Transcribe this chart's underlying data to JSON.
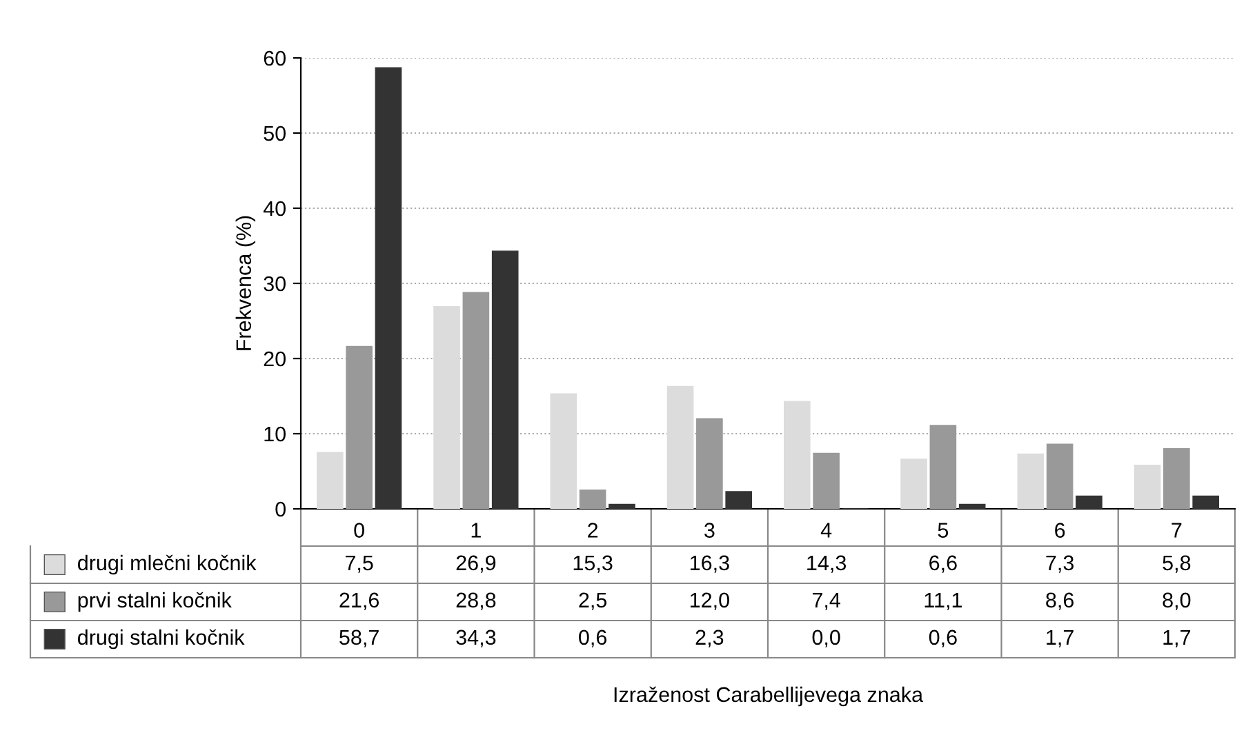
{
  "chart_data": {
    "type": "bar",
    "ylabel": "Frekvenca (%)",
    "annotations": [
      "Izraženost Carabellijevega znaka"
    ],
    "legend": "bottom left",
    "categories": [
      "0",
      "1",
      "2",
      "3",
      "4",
      "5",
      "6",
      "7"
    ],
    "series": [
      {
        "name": "drugi mlečni kočnik",
        "color": "#dcdcdc",
        "values": [
          7.5,
          26.9,
          15.3,
          16.3,
          14.3,
          6.6,
          7.3,
          5.8
        ],
        "value_labels": [
          "7,5",
          "26,9",
          "15,3",
          "16,3",
          "14,3",
          "6,6",
          "7,3",
          "5,8"
        ]
      },
      {
        "name": "prvi stalni kočnik",
        "color": "#999999",
        "values": [
          21.6,
          28.8,
          2.5,
          12.0,
          7.4,
          11.1,
          8.6,
          8.0
        ],
        "value_labels": [
          "21,6",
          "28,8",
          "2,5",
          "12,0",
          "7,4",
          "11,1",
          "8,6",
          "8,0"
        ]
      },
      {
        "name": "drugi stalni kočnik",
        "color": "#333333",
        "values": [
          58.7,
          34.3,
          0.6,
          2.3,
          0.0,
          0.6,
          1.7,
          1.7
        ],
        "value_labels": [
          "58,7",
          "34,3",
          "0,6",
          "2,3",
          "0,0",
          "0,6",
          "1,7",
          "1,7"
        ]
      }
    ],
    "ylim": [
      0,
      60
    ],
    "yticks": [
      0,
      10,
      20,
      30,
      40,
      50,
      60
    ],
    "grid": "y"
  }
}
